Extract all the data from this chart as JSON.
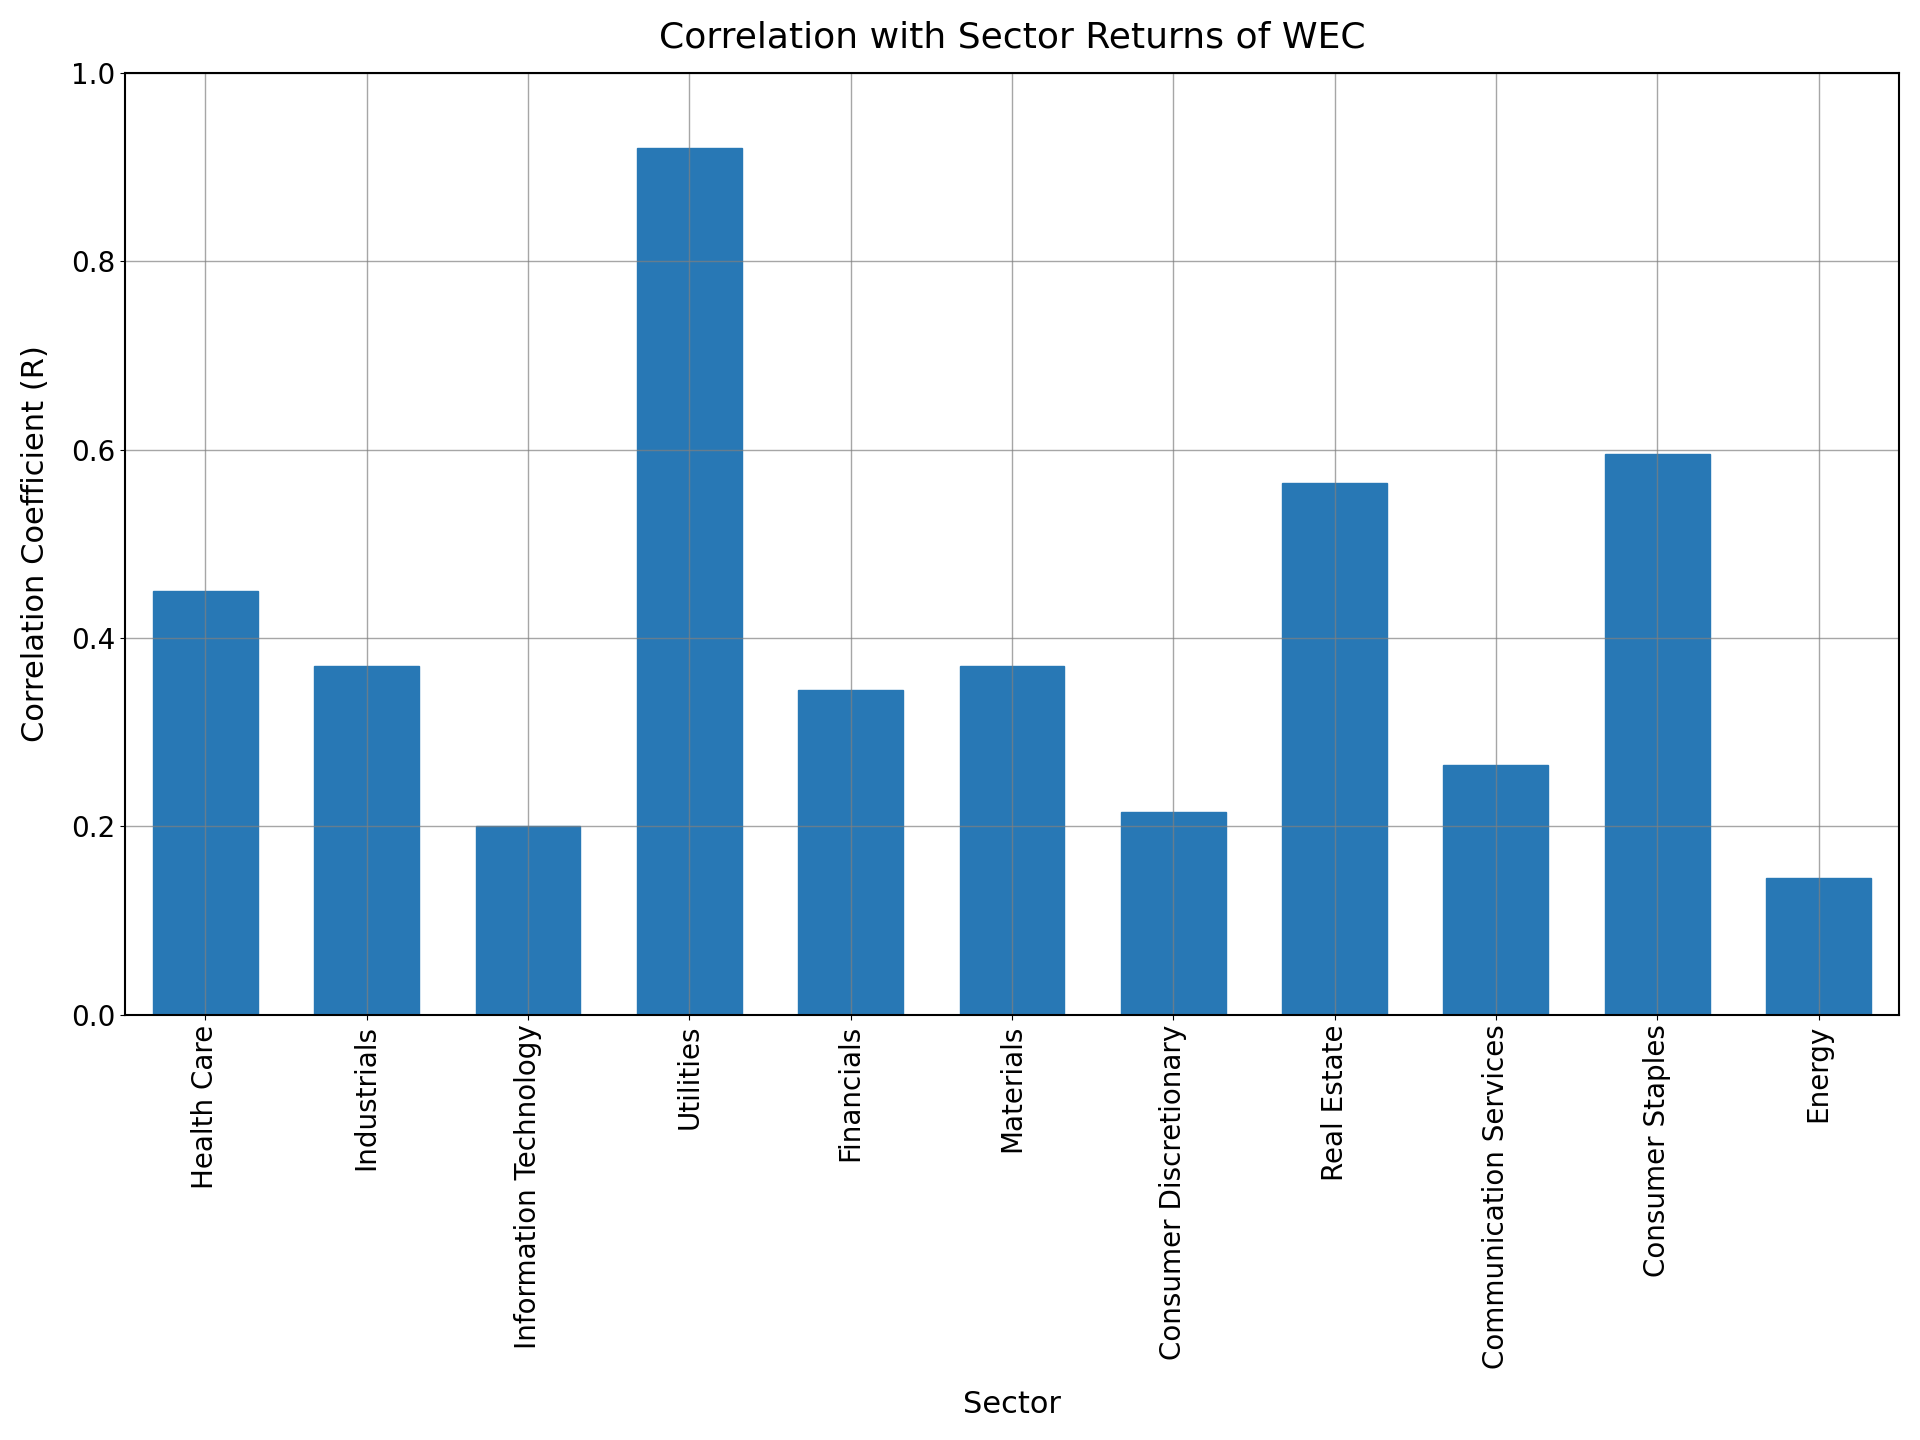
{
  "title": "Correlation with Sector Returns of WEC",
  "xlabel": "Sector",
  "ylabel": "Correlation Coefficient (R)",
  "categories": [
    "Health Care",
    "Industrials",
    "Information Technology",
    "Utilities",
    "Financials",
    "Materials",
    "Consumer Discretionary",
    "Real Estate",
    "Communication Services",
    "Consumer Staples",
    "Energy"
  ],
  "values": [
    0.45,
    0.37,
    0.2,
    0.92,
    0.345,
    0.37,
    0.215,
    0.565,
    0.265,
    0.595,
    0.145
  ],
  "bar_color": "#2878b5",
  "ylim": [
    0.0,
    1.0
  ],
  "yticks": [
    0.0,
    0.2,
    0.4,
    0.6,
    0.8,
    1.0
  ],
  "title_fontsize": 26,
  "label_fontsize": 22,
  "tick_fontsize": 20,
  "xtick_rotation": 90,
  "figsize": [
    19.2,
    14.4
  ],
  "dpi": 100,
  "bar_width": 0.65,
  "grid_color": "gray",
  "grid_alpha": 0.7,
  "grid_linewidth": 1.0
}
